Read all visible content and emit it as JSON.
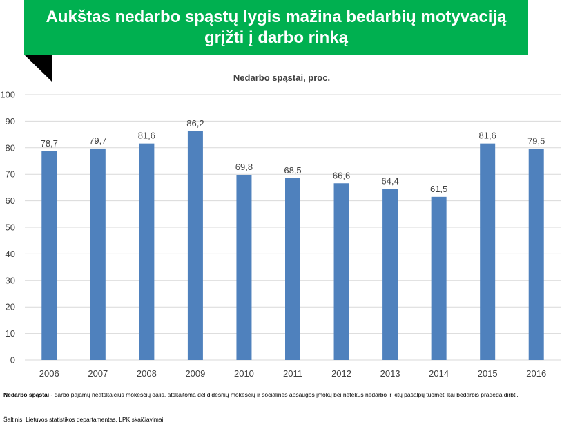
{
  "banner": {
    "title": "Aukštas nedarbo spąstų lygis mažina bedarbių motyvaciją grįžti į darbo rinką"
  },
  "chart_data": {
    "type": "bar",
    "title": "Nedarbo spąstai, proc.",
    "categories": [
      "2006",
      "2007",
      "2008",
      "2009",
      "2010",
      "2011",
      "2012",
      "2013",
      "2014",
      "2015",
      "2016"
    ],
    "values": [
      78.7,
      79.7,
      81.6,
      86.2,
      69.8,
      68.5,
      66.6,
      64.4,
      61.5,
      81.6,
      79.5
    ],
    "data_labels": [
      "78,7",
      "79,7",
      "81,6",
      "86,2",
      "69,8",
      "68,5",
      "66,6",
      "64,4",
      "61,5",
      "81,6",
      "79,5"
    ],
    "y_ticks": [
      "0",
      "10",
      "20",
      "30",
      "40",
      "50",
      "60",
      "70",
      "80",
      "90",
      "100"
    ],
    "ylim": [
      0,
      100
    ],
    "xlabel": "",
    "ylabel": "",
    "grid": true,
    "bar_color": "#4f81bd",
    "grid_color": "#d9d9d9"
  },
  "footnote": {
    "term": "Nedarbo spąstai",
    "text": " - darbo pajamų neatskaičius mokesčių dalis, atskaitoma dėl didesnių mokesčių ir socialinės apsaugos įmokų bei netekus nedarbo ir kitų pašalpų tuomet, kai bedarbis pradeda dirbti."
  },
  "source": "Šaltinis: Lietuvos statistikos departamentas, LPK skaičiavimai",
  "colors": {
    "banner": "#00b050",
    "banner_tail": "#000000"
  }
}
